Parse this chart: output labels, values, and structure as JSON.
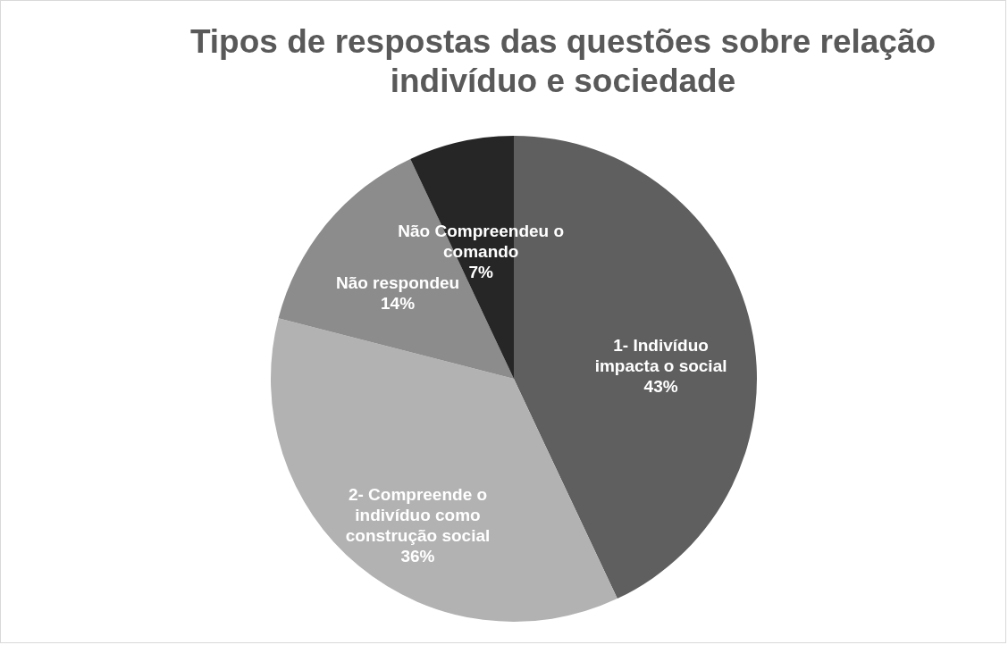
{
  "chart_data": {
    "type": "pie",
    "title": "Tipos de respostas das questões sobre relação indivíduo e sociedade",
    "categories": [
      "1- Indivíduo impacta o social",
      "2- Compreende o indivíduo como construção social",
      "Não respondeu",
      "Não Compreendeu o comando"
    ],
    "values": [
      43,
      36,
      14,
      7
    ],
    "value_labels": [
      "43%",
      "36%",
      "14%",
      "7%"
    ],
    "colors": [
      "#5f5f5f",
      "#b2b2b2",
      "#8c8c8c",
      "#262626"
    ],
    "legend": false
  }
}
